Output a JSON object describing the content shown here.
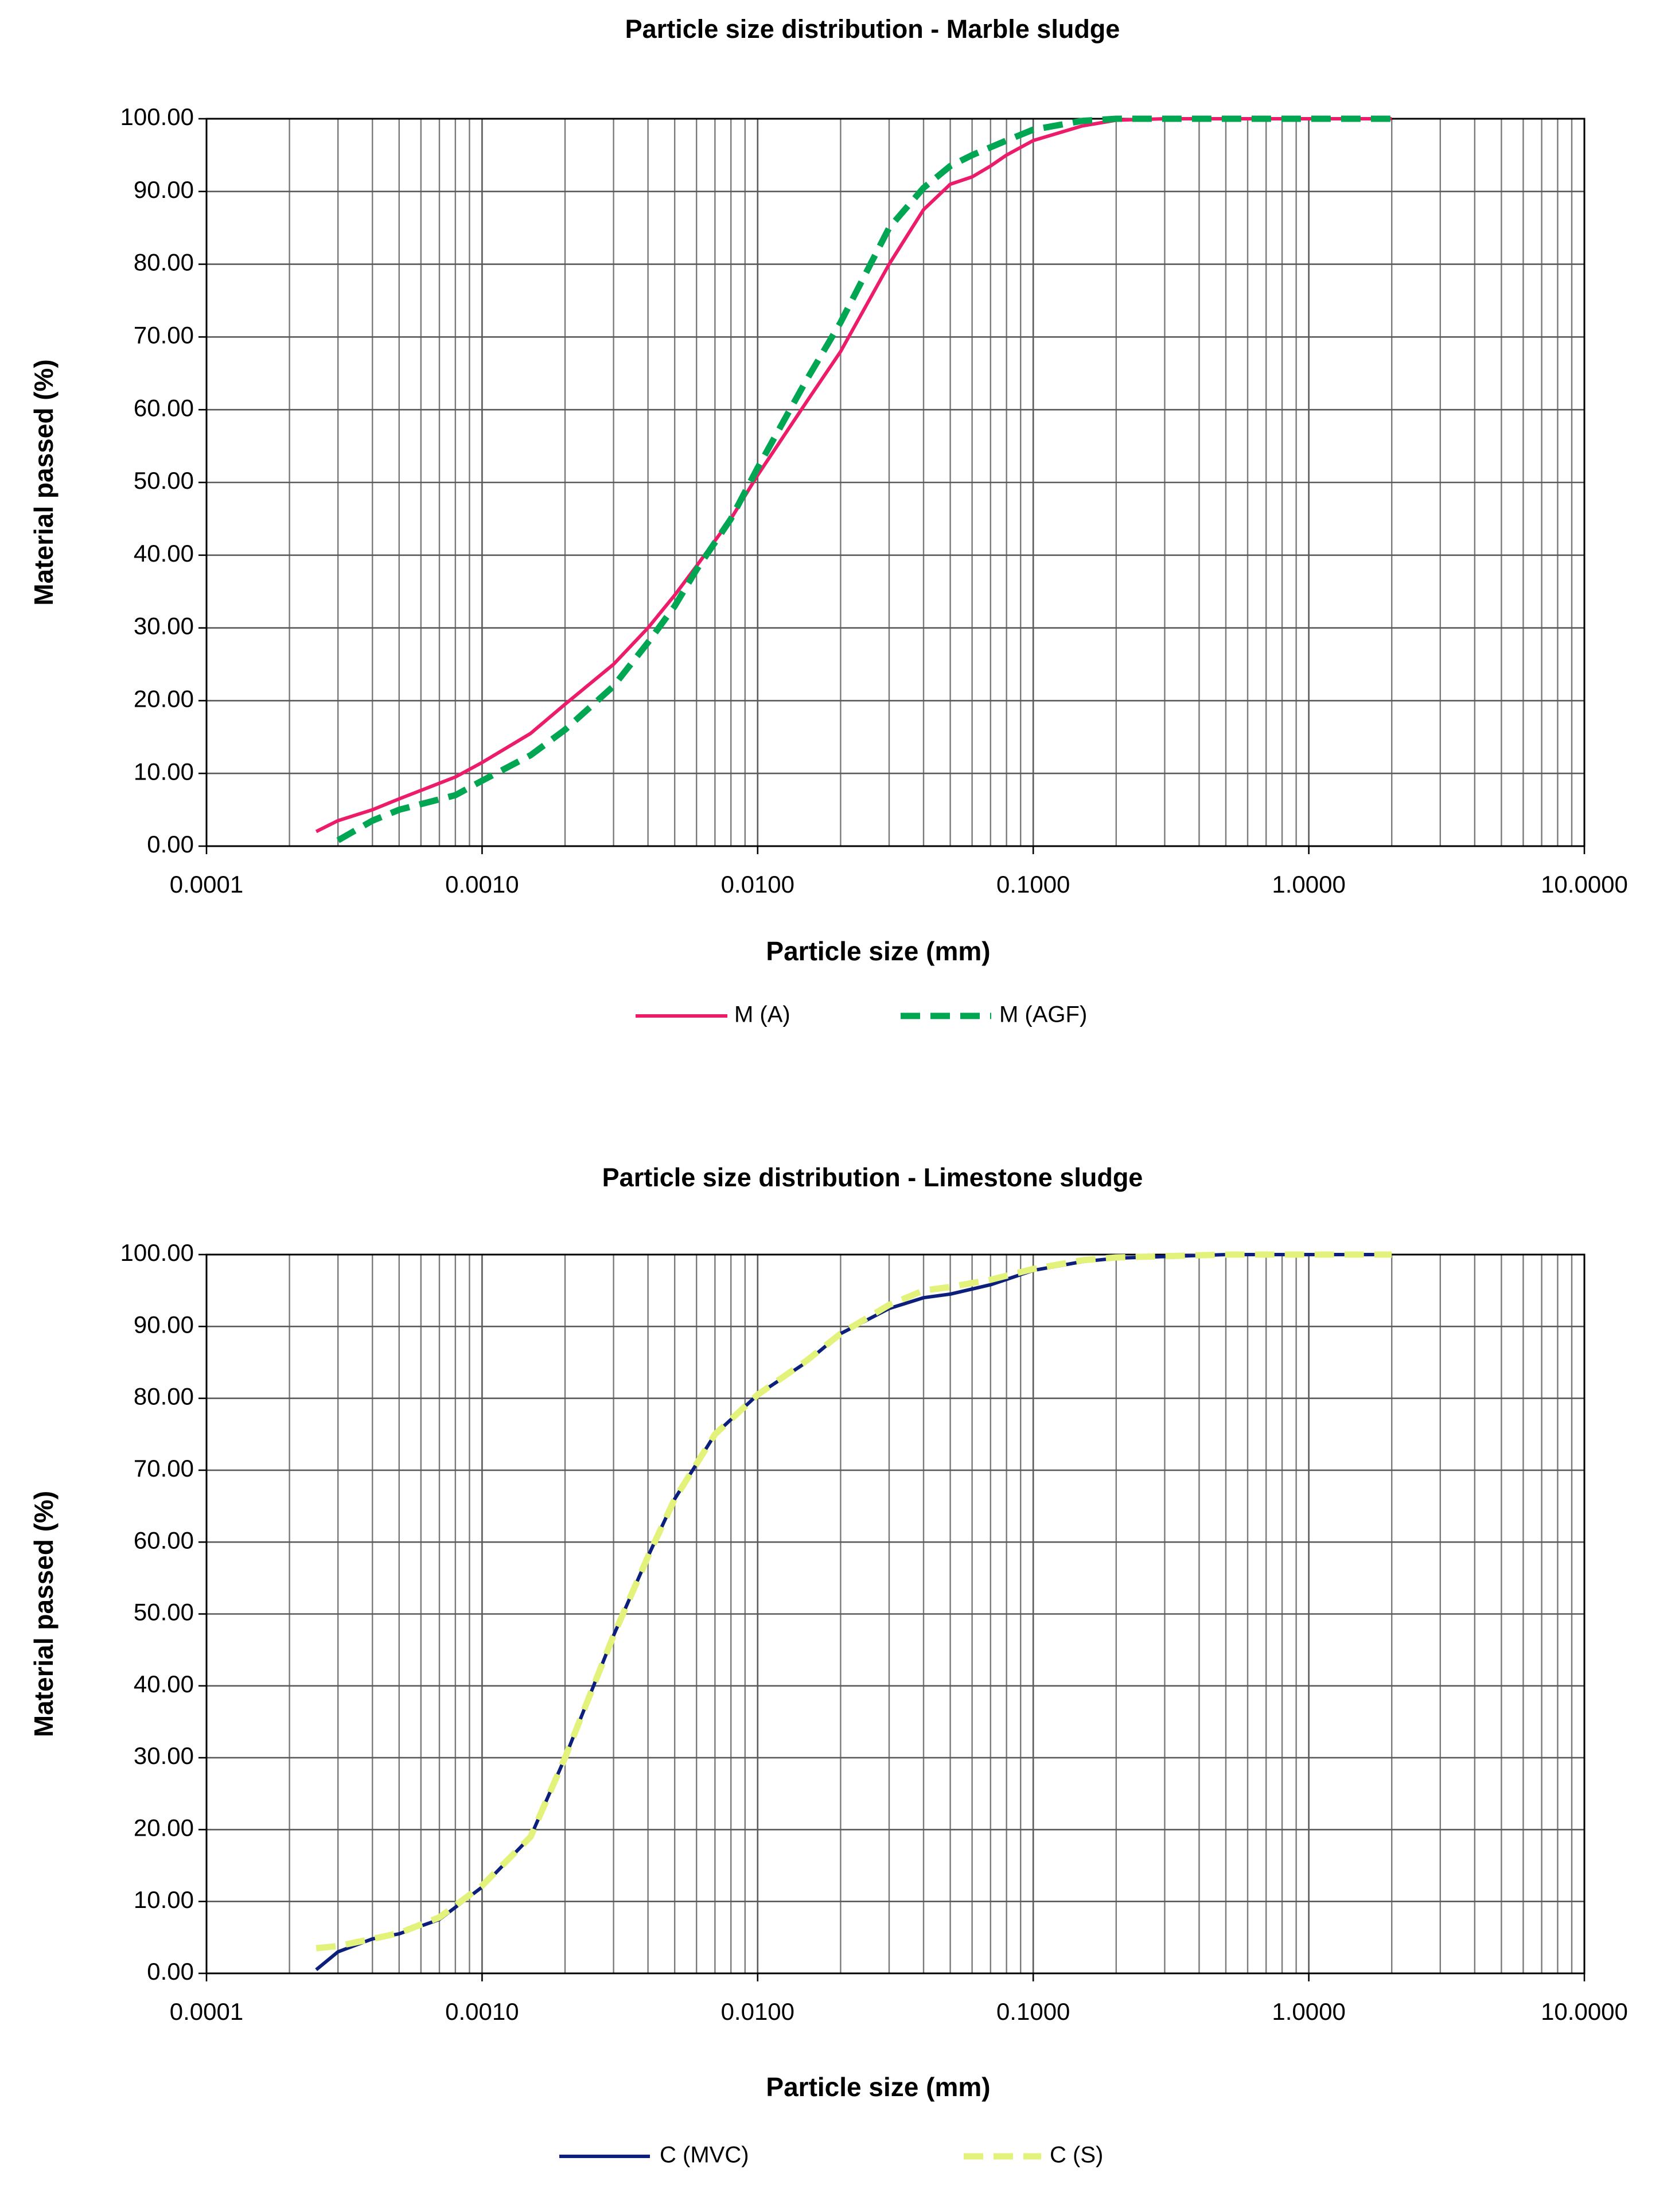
{
  "chart_data": [
    {
      "type": "line",
      "title": "Particle size distribution - Marble sludge",
      "x_label": "Particle size (mm)",
      "y_label": "Material passed (%)",
      "x_log": true,
      "grid": true,
      "xlim": [
        0.0001,
        10
      ],
      "xticks": [
        0.0001,
        {
          "value": 0.001,
          "label": "0.0010"
        },
        {
          "value": 0.01,
          "label": "0.0100"
        },
        {
          "value": 0.1,
          "label": "0.1000"
        },
        {
          "value": 1,
          "label": "1.0000"
        },
        {
          "value": 10,
          "label": "10.0000"
        }
      ],
      "ylim": [
        0,
        100
      ],
      "yticks": [
        {
          "value": 0,
          "label": "0.00"
        },
        {
          "value": 10,
          "label": "10.00"
        },
        {
          "value": 20,
          "label": "20.00"
        },
        {
          "value": 30,
          "label": "30.00"
        },
        {
          "value": 40,
          "label": "40.00"
        },
        {
          "value": 50,
          "label": "50.00"
        },
        {
          "value": 60,
          "label": "60.00"
        },
        {
          "value": 70,
          "label": "70.00"
        },
        {
          "value": 80,
          "label": "80.00"
        },
        {
          "value": 90,
          "label": "90.00"
        },
        {
          "value": 100,
          "label": "100.00"
        }
      ],
      "series": [
        {
          "name": "M (A)",
          "color": "#ec1c6a",
          "dashed": false,
          "x": [
            0.00025,
            0.0003,
            0.0004,
            0.0005,
            0.0008,
            0.001,
            0.0015,
            0.002,
            0.003,
            0.004,
            0.005,
            0.006,
            0.008,
            0.01,
            0.015,
            0.02,
            0.03,
            0.04,
            0.05,
            0.06,
            0.07,
            0.08,
            0.1,
            0.15,
            0.2,
            0.3,
            0.5,
            1,
            2
          ],
          "values": [
            2,
            3.5,
            5,
            6.5,
            9.5,
            11.5,
            15.5,
            19.5,
            25,
            30,
            34.5,
            38.5,
            45,
            51,
            61,
            68,
            80,
            87.5,
            91,
            92,
            93.5,
            95,
            97,
            99,
            99.8,
            100,
            100,
            100,
            100
          ]
        },
        {
          "name": "M (AGF)",
          "color": "#00a651",
          "dashed": true,
          "x": [
            0.0003,
            0.0004,
            0.0005,
            0.0008,
            0.001,
            0.0015,
            0.002,
            0.003,
            0.004,
            0.005,
            0.006,
            0.008,
            0.01,
            0.015,
            0.02,
            0.03,
            0.04,
            0.05,
            0.06,
            0.08,
            0.1,
            0.15,
            0.2,
            0.5,
            1,
            2
          ],
          "values": [
            0.8,
            3.5,
            5,
            7,
            9,
            12.5,
            16,
            22,
            28,
            33,
            38,
            45,
            52,
            64,
            72,
            85,
            90.5,
            93.5,
            95,
            97,
            98.5,
            99.7,
            100,
            100,
            100,
            100
          ]
        }
      ]
    },
    {
      "type": "line",
      "title": "Particle size distribution - Limestone sludge",
      "x_label": "Particle size (mm)",
      "y_label": "Material passed (%)",
      "x_log": true,
      "grid": true,
      "xlim": [
        0.0001,
        10
      ],
      "xticks": [
        0.0001,
        {
          "value": 0.001,
          "label": "0.0010"
        },
        {
          "value": 0.01,
          "label": "0.0100"
        },
        {
          "value": 0.1,
          "label": "0.1000"
        },
        {
          "value": 1,
          "label": "1.0000"
        },
        {
          "value": 10,
          "label": "10.0000"
        }
      ],
      "ylim": [
        0,
        100
      ],
      "yticks": [
        {
          "value": 0,
          "label": "0.00"
        },
        {
          "value": 10,
          "label": "10.00"
        },
        {
          "value": 20,
          "label": "20.00"
        },
        {
          "value": 30,
          "label": "30.00"
        },
        {
          "value": 40,
          "label": "40.00"
        },
        {
          "value": 50,
          "label": "50.00"
        },
        {
          "value": 60,
          "label": "60.00"
        },
        {
          "value": 70,
          "label": "70.00"
        },
        {
          "value": 80,
          "label": "80.00"
        },
        {
          "value": 90,
          "label": "90.00"
        },
        {
          "value": 100,
          "label": "100.00"
        }
      ],
      "series": [
        {
          "name": "C (MVC)",
          "color": "#0c1f7a",
          "dashed": false,
          "x": [
            0.00025,
            0.0003,
            0.0004,
            0.0005,
            0.0007,
            0.001,
            0.0015,
            0.002,
            0.003,
            0.004,
            0.005,
            0.007,
            0.01,
            0.015,
            0.02,
            0.03,
            0.04,
            0.05,
            0.07,
            0.1,
            0.15,
            0.2,
            0.5,
            1,
            2
          ],
          "values": [
            0.5,
            3,
            4.8,
            5.5,
            7.5,
            12,
            19,
            30,
            47,
            58,
            66,
            75,
            80.5,
            85,
            89,
            92.5,
            94,
            94.5,
            95.8,
            97.8,
            99,
            99.5,
            100,
            100,
            100
          ]
        },
        {
          "name": "C (S)",
          "color": "#e3f27a",
          "dashed": true,
          "x": [
            0.00025,
            0.0003,
            0.0004,
            0.0005,
            0.0007,
            0.001,
            0.0015,
            0.002,
            0.003,
            0.004,
            0.005,
            0.007,
            0.01,
            0.015,
            0.02,
            0.03,
            0.04,
            0.05,
            0.07,
            0.1,
            0.15,
            0.2,
            0.5,
            1,
            2
          ],
          "values": [
            3.5,
            3.8,
            4.8,
            5.6,
            7.8,
            12.2,
            19,
            30,
            47,
            58,
            66,
            75,
            80.5,
            85.2,
            89,
            93,
            95,
            95.5,
            96.5,
            98,
            99.2,
            99.6,
            100,
            100,
            100
          ]
        }
      ]
    }
  ]
}
